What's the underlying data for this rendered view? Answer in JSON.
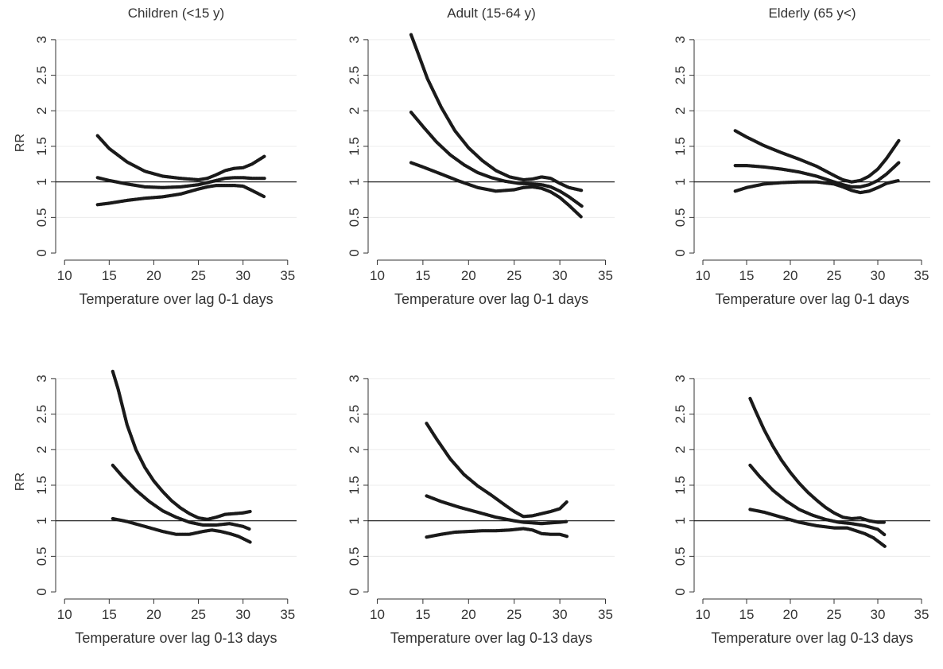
{
  "chart_data": [
    {
      "type": "line",
      "title": "Children (<15 y)",
      "xlabel": "Temperature over lag 0-1 days",
      "ylabel": "RR",
      "xlim": [
        9,
        36
      ],
      "ylim": [
        -0.1,
        3.2
      ],
      "xticks": [
        10,
        15,
        20,
        25,
        30,
        35
      ],
      "yticks": [
        0,
        0.5,
        1,
        1.5,
        2,
        2.5,
        3
      ],
      "ytick_labels": [
        "0",
        "0.5",
        "1",
        "1.5",
        "2",
        "2.5",
        "3"
      ],
      "reference_y": 1,
      "grid": true,
      "series": [
        {
          "x": [
            13.7,
            15,
            17,
            19,
            21,
            23,
            25,
            26,
            27,
            28,
            29,
            30,
            31,
            32.4
          ],
          "y": [
            1.65,
            1.47,
            1.28,
            1.15,
            1.08,
            1.05,
            1.03,
            1.05,
            1.1,
            1.16,
            1.19,
            1.2,
            1.25,
            1.36
          ]
        },
        {
          "x": [
            13.7,
            15,
            17,
            19,
            21,
            23,
            25,
            26,
            27,
            28,
            29,
            30,
            31,
            32.4
          ],
          "y": [
            1.06,
            1.02,
            0.97,
            0.93,
            0.92,
            0.93,
            0.96,
            0.99,
            1.02,
            1.05,
            1.06,
            1.06,
            1.05,
            1.05
          ]
        },
        {
          "x": [
            13.7,
            15,
            17,
            19,
            21,
            23,
            25,
            26,
            27,
            28,
            29,
            30,
            31,
            32.4
          ],
          "y": [
            0.68,
            0.7,
            0.74,
            0.77,
            0.79,
            0.83,
            0.9,
            0.93,
            0.95,
            0.95,
            0.95,
            0.94,
            0.88,
            0.79
          ]
        }
      ]
    },
    {
      "type": "line",
      "title": "Adult (15-64 y)",
      "xlabel": "Temperature over lag 0-1 days",
      "ylabel": "",
      "xlim": [
        9,
        36
      ],
      "ylim": [
        -0.1,
        3.2
      ],
      "xticks": [
        10,
        15,
        20,
        25,
        30,
        35
      ],
      "yticks": [
        0,
        0.5,
        1,
        1.5,
        2,
        2.5,
        3
      ],
      "ytick_labels": [
        "0",
        "0.5",
        "1",
        "1.5",
        "2",
        "2.5",
        "3"
      ],
      "reference_y": 1,
      "grid": true,
      "series": [
        {
          "x": [
            13.7,
            14.5,
            15.5,
            17,
            18.5,
            20,
            21.5,
            23,
            24.5,
            26,
            27,
            28,
            29,
            30,
            31,
            32.4
          ],
          "y": [
            3.07,
            2.8,
            2.45,
            2.05,
            1.72,
            1.48,
            1.3,
            1.16,
            1.07,
            1.03,
            1.04,
            1.07,
            1.05,
            0.98,
            0.92,
            0.88
          ]
        },
        {
          "x": [
            13.7,
            15,
            16.5,
            18,
            19.5,
            21,
            22.5,
            24,
            25.5,
            27,
            28,
            29,
            30,
            31,
            32.4
          ],
          "y": [
            1.98,
            1.78,
            1.56,
            1.38,
            1.24,
            1.13,
            1.06,
            1.01,
            0.98,
            0.97,
            0.96,
            0.93,
            0.87,
            0.79,
            0.66
          ]
        },
        {
          "x": [
            13.7,
            15,
            17,
            19,
            21,
            23,
            25,
            26,
            27,
            28,
            29,
            30,
            31,
            32.4
          ],
          "y": [
            1.27,
            1.21,
            1.11,
            1.01,
            0.92,
            0.87,
            0.89,
            0.92,
            0.93,
            0.91,
            0.86,
            0.78,
            0.67,
            0.5
          ]
        }
      ]
    },
    {
      "type": "line",
      "title": "Elderly (65 y<)",
      "xlabel": "Temperature over lag 0-1 days",
      "ylabel": "",
      "xlim": [
        9,
        36
      ],
      "ylim": [
        -0.1,
        3.2
      ],
      "xticks": [
        10,
        15,
        20,
        25,
        30,
        35
      ],
      "yticks": [
        0,
        0.5,
        1,
        1.5,
        2,
        2.5,
        3
      ],
      "ytick_labels": [
        "0",
        "0.5",
        "1",
        "1.5",
        "2",
        "2.5",
        "3"
      ],
      "reference_y": 1,
      "grid": true,
      "series": [
        {
          "x": [
            13.7,
            15,
            17,
            19,
            21,
            23,
            25,
            26,
            27,
            28,
            29,
            30,
            31,
            32.4
          ],
          "y": [
            1.72,
            1.63,
            1.51,
            1.41,
            1.32,
            1.22,
            1.09,
            1.03,
            1.0,
            1.02,
            1.08,
            1.18,
            1.33,
            1.58
          ]
        },
        {
          "x": [
            13.7,
            15,
            17,
            19,
            21,
            23,
            25,
            26,
            27,
            28,
            29,
            30,
            31,
            32.4
          ],
          "y": [
            1.23,
            1.23,
            1.21,
            1.18,
            1.14,
            1.08,
            1.0,
            0.96,
            0.93,
            0.93,
            0.96,
            1.02,
            1.11,
            1.27
          ]
        },
        {
          "x": [
            13.7,
            15,
            17,
            19,
            21,
            23,
            25,
            26,
            27,
            28,
            29,
            30,
            31,
            32.4
          ],
          "y": [
            0.87,
            0.92,
            0.97,
            0.99,
            1.0,
            1.0,
            0.97,
            0.93,
            0.88,
            0.85,
            0.87,
            0.92,
            0.98,
            1.02
          ]
        }
      ]
    },
    {
      "type": "line",
      "title": "",
      "xlabel": "Temperature over lag 0-13 days",
      "ylabel": "RR",
      "xlim": [
        9,
        36
      ],
      "ylim": [
        -0.1,
        3.2
      ],
      "xticks": [
        10,
        15,
        20,
        25,
        30,
        35
      ],
      "yticks": [
        0,
        0.5,
        1,
        1.5,
        2,
        2.5,
        3
      ],
      "ytick_labels": [
        "0",
        "0.5",
        "1",
        "1.5",
        "2",
        "2.5",
        "3"
      ],
      "reference_y": 1,
      "grid": true,
      "series": [
        {
          "x": [
            15.4,
            16,
            17,
            18,
            19,
            20,
            21,
            22,
            23,
            24,
            25,
            26,
            27,
            28,
            29,
            30,
            30.8
          ],
          "y": [
            3.1,
            2.85,
            2.35,
            2.0,
            1.75,
            1.56,
            1.41,
            1.28,
            1.18,
            1.1,
            1.04,
            1.02,
            1.05,
            1.09,
            1.1,
            1.11,
            1.13
          ]
        },
        {
          "x": [
            15.4,
            16.5,
            18,
            19.5,
            21,
            22.5,
            24,
            25.5,
            27,
            28.5,
            30,
            30.8
          ],
          "y": [
            1.78,
            1.62,
            1.43,
            1.27,
            1.14,
            1.05,
            0.98,
            0.94,
            0.94,
            0.96,
            0.92,
            0.88
          ]
        },
        {
          "x": [
            15.4,
            17,
            19,
            21,
            22.5,
            24,
            25.5,
            26.5,
            27.5,
            28.5,
            29.5,
            30.8
          ],
          "y": [
            1.03,
            0.99,
            0.92,
            0.85,
            0.81,
            0.81,
            0.85,
            0.87,
            0.85,
            0.82,
            0.78,
            0.7
          ]
        }
      ]
    },
    {
      "type": "line",
      "title": "",
      "xlabel": "Temperature over lag 0-13 days",
      "ylabel": "",
      "xlim": [
        9,
        36
      ],
      "ylim": [
        -0.1,
        3.2
      ],
      "xticks": [
        10,
        15,
        20,
        25,
        30,
        35
      ],
      "yticks": [
        0,
        0.5,
        1,
        1.5,
        2,
        2.5,
        3
      ],
      "ytick_labels": [
        "0",
        "0.5",
        "1",
        "1.5",
        "2",
        "2.5",
        "3"
      ],
      "reference_y": 1,
      "grid": true,
      "series": [
        {
          "x": [
            15.4,
            16.5,
            18,
            19.5,
            21,
            22.5,
            24,
            25,
            26,
            27,
            28,
            29,
            30,
            30.8
          ],
          "y": [
            2.37,
            2.15,
            1.87,
            1.65,
            1.49,
            1.36,
            1.22,
            1.13,
            1.06,
            1.07,
            1.1,
            1.13,
            1.17,
            1.27
          ]
        },
        {
          "x": [
            15.4,
            17,
            19,
            21,
            23,
            25,
            26,
            27,
            28,
            29,
            30,
            30.8
          ],
          "y": [
            1.35,
            1.27,
            1.19,
            1.12,
            1.05,
            1.0,
            0.98,
            0.97,
            0.96,
            0.97,
            0.98,
            0.99
          ]
        },
        {
          "x": [
            15.4,
            17,
            18.5,
            20,
            21.5,
            23,
            24.5,
            26,
            27,
            28,
            29,
            30,
            30.8
          ],
          "y": [
            0.77,
            0.81,
            0.84,
            0.85,
            0.86,
            0.86,
            0.87,
            0.89,
            0.87,
            0.82,
            0.81,
            0.81,
            0.78
          ]
        }
      ]
    },
    {
      "type": "line",
      "title": "",
      "xlabel": "Temperature over lag 0-13 days",
      "ylabel": "",
      "xlim": [
        9,
        36
      ],
      "ylim": [
        -0.1,
        3.2
      ],
      "xticks": [
        10,
        15,
        20,
        25,
        30,
        35
      ],
      "yticks": [
        0,
        0.5,
        1,
        1.5,
        2,
        2.5,
        3
      ],
      "ytick_labels": [
        "0",
        "0.5",
        "1",
        "1.5",
        "2",
        "2.5",
        "3"
      ],
      "reference_y": 1,
      "grid": true,
      "series": [
        {
          "x": [
            15.4,
            16,
            17,
            18,
            19,
            20,
            21,
            22,
            23,
            24,
            25,
            26,
            27,
            28,
            29,
            30,
            30.8
          ],
          "y": [
            2.72,
            2.55,
            2.28,
            2.05,
            1.85,
            1.68,
            1.53,
            1.4,
            1.29,
            1.19,
            1.11,
            1.05,
            1.03,
            1.04,
            1.0,
            0.98,
            0.98
          ]
        },
        {
          "x": [
            15.4,
            16.5,
            18,
            19.5,
            21,
            22.5,
            24,
            25.5,
            27,
            28.5,
            30,
            30.8
          ],
          "y": [
            1.78,
            1.62,
            1.43,
            1.28,
            1.16,
            1.08,
            1.02,
            0.98,
            0.96,
            0.93,
            0.88,
            0.8
          ]
        },
        {
          "x": [
            15.4,
            17,
            19,
            21,
            23,
            25,
            26.5,
            27.5,
            28.5,
            29.5,
            30.8
          ],
          "y": [
            1.16,
            1.12,
            1.05,
            0.98,
            0.93,
            0.9,
            0.9,
            0.86,
            0.82,
            0.76,
            0.64
          ]
        }
      ]
    }
  ]
}
